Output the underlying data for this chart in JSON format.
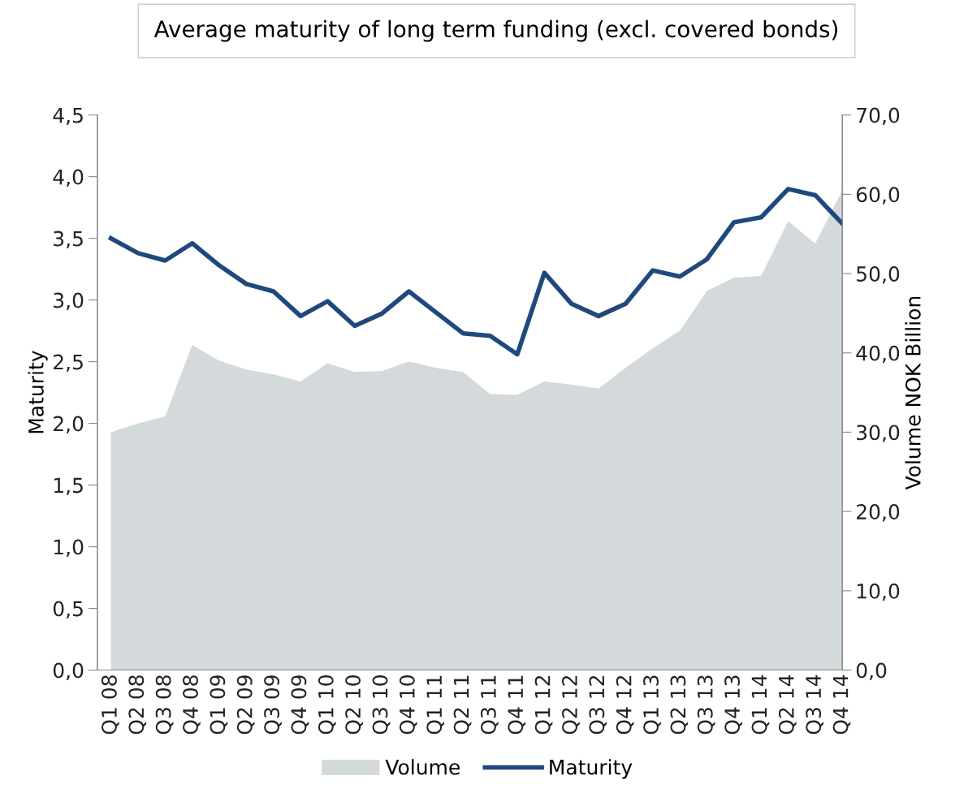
{
  "chart_data": {
    "type": "line",
    "title": "Average maturity of long term funding (excl. covered bonds)",
    "ylabel": "Maturity",
    "y2label": "Volume NOK Billion",
    "categories": [
      "Q1 08",
      "Q2 08",
      "Q3 08",
      "Q4 08",
      "Q1 09",
      "Q2 09",
      "Q3 09",
      "Q4 09",
      "Q1 10",
      "Q2 10",
      "Q3 10",
      "Q4 10",
      "Q1 11",
      "Q2 11",
      "Q3 11",
      "Q4 11",
      "Q1 12",
      "Q2 12",
      "Q3 12",
      "Q4 12",
      "Q1 13",
      "Q2 13",
      "Q3 13",
      "Q4 13",
      "Q1 14",
      "Q2 14",
      "Q3 14",
      "Q4 14"
    ],
    "series": [
      {
        "name": "Volume",
        "type": "area",
        "axis": "y2",
        "color": "#d4d9dc",
        "values": [
          30.0,
          31.1,
          32.0,
          41.0,
          39.0,
          37.9,
          37.3,
          36.4,
          38.7,
          37.6,
          37.7,
          38.9,
          38.1,
          37.6,
          34.8,
          34.7,
          36.4,
          36.0,
          35.5,
          38.1,
          40.6,
          42.8,
          47.8,
          49.5,
          49.7,
          56.6,
          53.8,
          60.5
        ]
      },
      {
        "name": "Maturity",
        "type": "line",
        "color": "#1f497d",
        "values": [
          3.5,
          3.38,
          3.32,
          3.46,
          3.28,
          3.13,
          3.07,
          2.87,
          2.99,
          2.79,
          2.89,
          3.07,
          2.9,
          2.73,
          2.71,
          2.56,
          3.22,
          2.97,
          2.87,
          2.97,
          3.24,
          3.19,
          3.33,
          3.63,
          3.67,
          3.9,
          3.85,
          3.62
        ]
      }
    ],
    "ylim": [
      0,
      4.5
    ],
    "yticks": [
      {
        "value": 0,
        "label": "0,0"
      },
      {
        "value": 0.5,
        "label": "0,5"
      },
      {
        "value": 1,
        "label": "1,0"
      },
      {
        "value": 1.5,
        "label": "1,5"
      },
      {
        "value": 2,
        "label": "2,0"
      },
      {
        "value": 2.5,
        "label": "2,5"
      },
      {
        "value": 3,
        "label": "3,0"
      },
      {
        "value": 3.5,
        "label": "3,5"
      },
      {
        "value": 4,
        "label": "4,0"
      },
      {
        "value": 4.5,
        "label": "4,5"
      }
    ],
    "y2lim": [
      0,
      70
    ],
    "y2ticks": [
      {
        "value": 0,
        "label": "0,0"
      },
      {
        "value": 10,
        "label": "10,0"
      },
      {
        "value": 20,
        "label": "20,0"
      },
      {
        "value": 30,
        "label": "30,0"
      },
      {
        "value": 40,
        "label": "40,0"
      },
      {
        "value": 50,
        "label": "50,0"
      },
      {
        "value": 60,
        "label": "60,0"
      },
      {
        "value": 70,
        "label": "70,0"
      }
    ],
    "legend": "bottom",
    "grid": false
  }
}
